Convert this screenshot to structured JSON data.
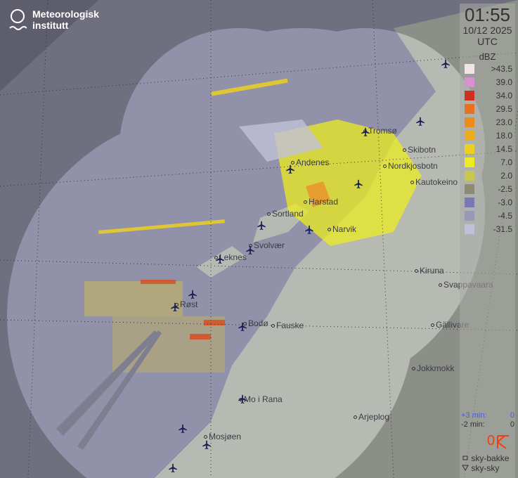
{
  "logo": {
    "line1": "Meteorologisk",
    "line2": "institutt"
  },
  "panel": {
    "time": "01:55",
    "date": "10/12 2025",
    "timezone": "UTC",
    "unit": "dBZ",
    "legend": [
      {
        "label": ">43.5",
        "color": "#f0e4e4"
      },
      {
        "label": "39.0",
        "color": "#d890d0"
      },
      {
        "label": "34.0",
        "color": "#d03020"
      },
      {
        "label": "29.5",
        "color": "#e87020"
      },
      {
        "label": "23.0",
        "color": "#ec8c1c"
      },
      {
        "label": "18.0",
        "color": "#ecac20"
      },
      {
        "label": "14.5",
        "color": "#ecd020"
      },
      {
        "label": "7.0",
        "color": "#ecec20"
      },
      {
        "label": "2.0",
        "color": "#c8c850"
      },
      {
        "label": "-2.5",
        "color": "#8c8c74"
      },
      {
        "label": "-3.0",
        "color": "#7878b8"
      },
      {
        "label": "-4.5",
        "color": "#9898b8"
      },
      {
        "label": "-31.5",
        "color": "#c0c0d8"
      }
    ],
    "lightning": {
      "plus3_label": "+3 min:",
      "plus3_value": "0",
      "minus2_label": "-2 min:",
      "minus2_value": "0",
      "count": "0"
    },
    "symbols": {
      "ground": "sky-bakke",
      "cloud": "sky-sky"
    }
  },
  "places": [
    "Tromsø",
    "Skibotn",
    "Andenes",
    "Nordkjosbotn",
    "Harstad",
    "Sortland",
    "Narvik",
    "Svolvær",
    "Leknes",
    "Kiruna",
    "Svappavaara",
    "Røst",
    "Bodø",
    "Fauske",
    "Gällivare",
    "Jokkmokk",
    "Mo i Rana",
    "Arjeplog",
    "Mosjøen",
    "Kautokeino"
  ],
  "icons": {
    "airport": "airplane-icon",
    "lightning": "lightning-icon"
  }
}
